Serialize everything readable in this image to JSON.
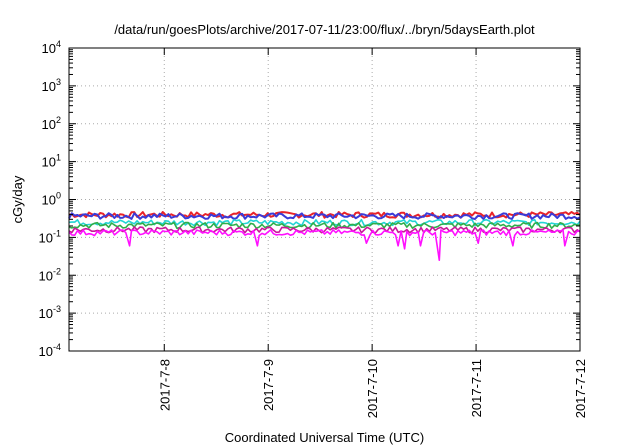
{
  "chart_data": {
    "type": "line",
    "title": "/data/run/goesPlots/archive/2017-07-11/23:00/flux/../bryn/5daysEarth.plot",
    "xlabel": "Coordinated Universal Time (UTC)",
    "ylabel": "cGy/day",
    "yscale": "log",
    "ylim": [
      0.0001,
      10000
    ],
    "xlim": [
      "2017-07-07 02:00",
      "2017-07-12 00:00"
    ],
    "grid": true,
    "ticks": {
      "x": [
        {
          "label": "2017-7-8",
          "at": "2017-07-08 00:00"
        },
        {
          "label": "2017-7-9",
          "at": "2017-07-09 00:00"
        },
        {
          "label": "2017-7-10",
          "at": "2017-07-10 00:00"
        },
        {
          "label": "2017-7-11",
          "at": "2017-07-11 00:00"
        },
        {
          "label": "2017-7-12",
          "at": "2017-07-12 00:00"
        }
      ],
      "y": [
        {
          "base": "10",
          "exp": "-4",
          "value": 0.0001
        },
        {
          "base": "10",
          "exp": "-3",
          "value": 0.001
        },
        {
          "base": "10",
          "exp": "-2",
          "value": 0.01
        },
        {
          "base": "10",
          "exp": "-1",
          "value": 0.1
        },
        {
          "base": "10",
          "exp": "0",
          "value": 1
        },
        {
          "base": "10",
          "exp": "1",
          "value": 10
        },
        {
          "base": "10",
          "exp": "2",
          "value": 100
        },
        {
          "base": "10",
          "exp": "3",
          "value": 1000
        },
        {
          "base": "10",
          "exp": "4",
          "value": 10000
        }
      ]
    },
    "series": [
      {
        "color": "#e8232a",
        "level": 0.4,
        "x_start": "2017-07-07 02:00",
        "x_end": "2017-07-12 00:00",
        "dips": []
      },
      {
        "color": "#3a3ad8",
        "level": 0.37,
        "x_start": "2017-07-07 02:00",
        "x_end": "2017-07-12 00:00",
        "dips": []
      },
      {
        "color": "#22d4d4",
        "level": 0.25,
        "x_start": "2017-07-07 02:00",
        "x_end": "2017-07-12 00:00",
        "dips": []
      },
      {
        "color": "#2fae4a",
        "level": 0.21,
        "x_start": "2017-07-07 02:00",
        "x_end": "2017-07-12 00:00",
        "dips": []
      },
      {
        "color": "#c8189a",
        "level": 0.16,
        "x_start": "2017-07-07 02:00",
        "x_end": "2017-07-12 00:00",
        "dips": []
      },
      {
        "color": "#ff10ff",
        "level": 0.135,
        "x_start": "2017-07-07 02:00",
        "x_end": "2017-07-12 00:00",
        "dips": [
          {
            "x": "2017-07-07 16:00",
            "y": 0.06
          },
          {
            "x": "2017-07-08 21:30",
            "y": 0.06
          },
          {
            "x": "2017-07-09 22:40",
            "y": 0.07
          },
          {
            "x": "2017-07-10 06:00",
            "y": 0.06
          },
          {
            "x": "2017-07-10 07:30",
            "y": 0.05
          },
          {
            "x": "2017-07-10 11:10",
            "y": 0.06
          },
          {
            "x": "2017-07-10 15:30",
            "y": 0.025
          },
          {
            "x": "2017-07-11 00:30",
            "y": 0.07
          },
          {
            "x": "2017-07-11 08:30",
            "y": 0.06
          },
          {
            "x": "2017-07-11 20:30",
            "y": 0.06
          }
        ]
      }
    ]
  }
}
